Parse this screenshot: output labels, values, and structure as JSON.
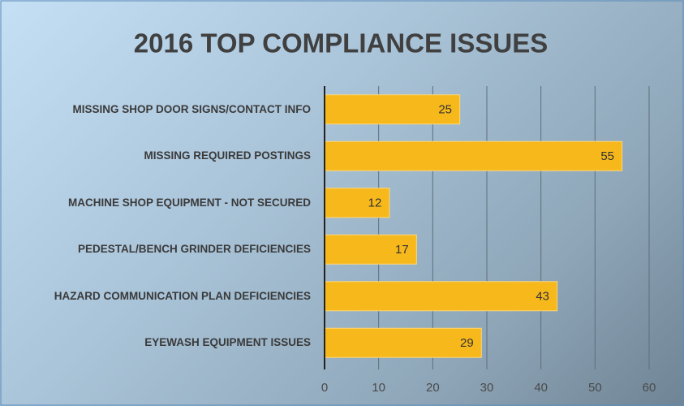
{
  "chart_data": {
    "type": "bar",
    "orientation": "horizontal",
    "title": "2016 TOP COMPLIANCE ISSUES",
    "categories": [
      "MISSING SHOP DOOR SIGNS/CONTACT INFO",
      "MISSING REQUIRED POSTINGS",
      "MACHINE SHOP EQUIPMENT - NOT SECURED",
      "PEDESTAL/BENCH GRINDER DEFICIENCIES",
      "HAZARD COMMUNICATION PLAN DEFICIENCIES",
      "EYEWASH EQUIPMENT ISSUES"
    ],
    "values": [
      25,
      55,
      12,
      17,
      43,
      29
    ],
    "color": "#f7b81c",
    "xlim": [
      0,
      60
    ],
    "xticks": [
      0,
      10,
      20,
      30,
      40,
      50,
      60
    ],
    "grid": true
  }
}
